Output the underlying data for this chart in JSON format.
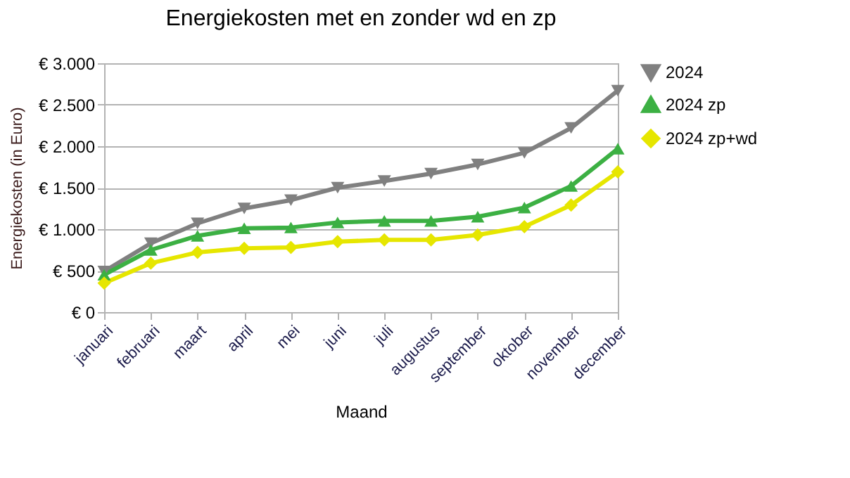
{
  "chart_data": {
    "type": "line",
    "title": "Energiekosten met en zonder wd en zp",
    "xlabel": "Maand",
    "ylabel": "Energiekosten (in Euro)",
    "categories": [
      "januari",
      "februari",
      "maart",
      "april",
      "mei",
      "juni",
      "juli",
      "augustus",
      "september",
      "oktober",
      "november",
      "december"
    ],
    "series": [
      {
        "name": "2024",
        "color": "#808080",
        "marker": "triangle-down",
        "values": [
          490,
          830,
          1070,
          1250,
          1350,
          1500,
          1580,
          1670,
          1780,
          1920,
          2220,
          2670
        ]
      },
      {
        "name": "2024 zp",
        "color": "#3cb043",
        "marker": "triangle",
        "values": [
          450,
          750,
          920,
          1010,
          1020,
          1080,
          1100,
          1100,
          1150,
          1260,
          1520,
          1970
        ]
      },
      {
        "name": "2024 zp+wd",
        "color": "#e6e600",
        "marker": "diamond",
        "values": [
          350,
          590,
          720,
          770,
          780,
          850,
          870,
          870,
          930,
          1030,
          1290,
          1690
        ]
      }
    ],
    "ylim": [
      0,
      3000
    ],
    "yticks": [
      {
        "value": 0,
        "label": "€ 0"
      },
      {
        "value": 500,
        "label": "€ 500"
      },
      {
        "value": 1000,
        "label": "€ 1.000"
      },
      {
        "value": 1500,
        "label": "€ 1.500"
      },
      {
        "value": 2000,
        "label": "€ 2.000"
      },
      {
        "value": 2500,
        "label": "€ 2.500"
      },
      {
        "value": 3000,
        "label": "€ 3.000"
      }
    ],
    "grid": "y",
    "legend": "right",
    "line_style": "solid"
  }
}
